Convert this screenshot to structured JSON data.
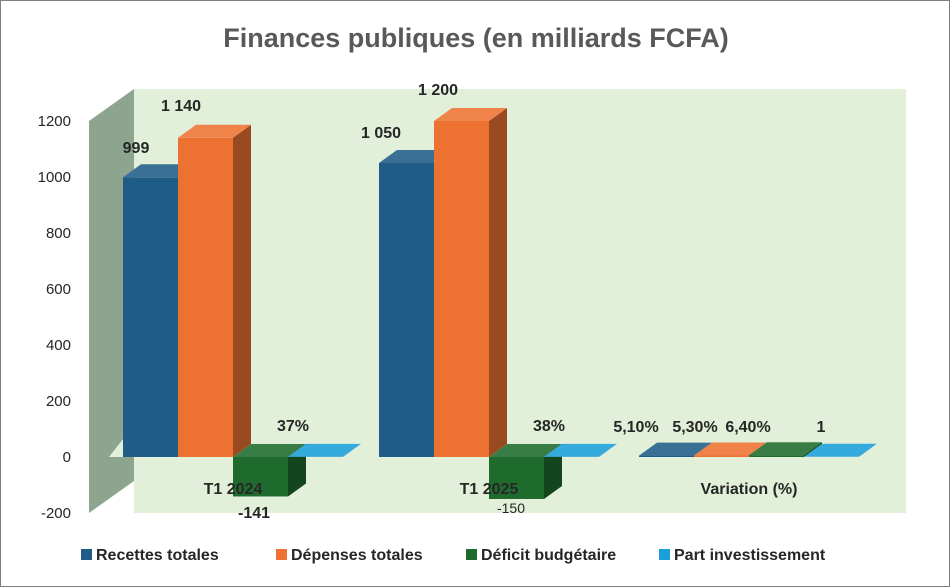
{
  "chart_data": {
    "type": "bar",
    "style": "3d-clustered-column",
    "title": "Finances publiques (en milliards FCFA)",
    "categories": [
      "T1 2024",
      "T1 2025",
      "Variation (%)"
    ],
    "ylim": [
      -200,
      1200
    ],
    "yticks": [
      -200,
      0,
      200,
      400,
      600,
      800,
      1000,
      1200
    ],
    "series": [
      {
        "name": "Recettes totales",
        "color": "#1f5c87",
        "values": [
          999,
          1050,
          5.1
        ],
        "labels": [
          "999",
          "1 050",
          "5,10%"
        ]
      },
      {
        "name": "Dépenses totales",
        "color": "#ed7231",
        "values": [
          1140,
          1200,
          5.3
        ],
        "labels": [
          "1 140",
          "1 200",
          "5,30%"
        ]
      },
      {
        "name": "Déficit budgétaire",
        "color": "#1e6b2d",
        "values": [
          -141,
          -150,
          6.4
        ],
        "labels": [
          "-141",
          "-150",
          "6,40%"
        ],
        "label_colors": [
          "#c00000",
          "#c00000",
          "#262626"
        ]
      },
      {
        "name": "Part investissement",
        "color": "#1aa0d8",
        "values": [
          0.37,
          0.38,
          1
        ],
        "labels": [
          "37%",
          "38%",
          "1"
        ]
      }
    ],
    "legend_position": "bottom",
    "grid": false
  }
}
